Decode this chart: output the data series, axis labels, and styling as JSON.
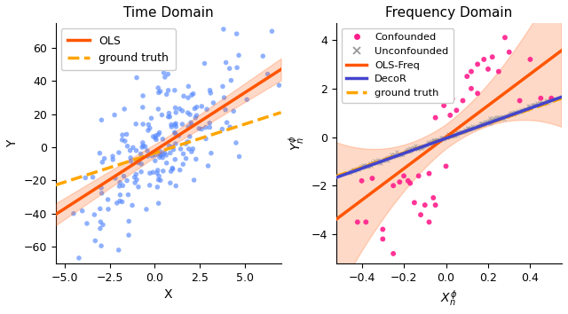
{
  "left_title": "Time Domain",
  "right_title": "Frequency Domain",
  "left_xlabel": "X",
  "left_ylabel": "Y",
  "right_xlabel": "$X_n^{\\phi}$",
  "right_ylabel": "$Y_n^{\\phi}$",
  "ols_color": "#FF5500",
  "ols_lw": 2.5,
  "gt_color": "#FFA500",
  "gt_lw": 2.5,
  "decor_color": "#4444CC",
  "decor_lw": 2.5,
  "scatter_color": "#5588FF",
  "confounded_color": "#FF1E8C",
  "unconfounded_color": "#999999",
  "ci_color": "#FF5500",
  "ci_alpha": 0.22,
  "left_xlim": [
    -5.5,
    7.0
  ],
  "left_ylim": [
    -70,
    75
  ],
  "right_xlim": [
    -0.52,
    0.55
  ],
  "right_ylim": [
    -5.2,
    4.7
  ],
  "ols_t_slope": 7.0,
  "ols_t_intercept": -2.0,
  "gt_t_slope": 3.5,
  "gt_t_intercept": -3.5,
  "ols_f_slope": 6.5,
  "ols_f_intercept": 0.0,
  "decor_slope": 3.1,
  "decor_intercept": -0.05,
  "gt_f_slope": 3.0,
  "gt_f_intercept": -0.05,
  "n_unconf": 220,
  "unconf_slope": 3.1,
  "unconf_noise": 0.04,
  "seed": 77
}
